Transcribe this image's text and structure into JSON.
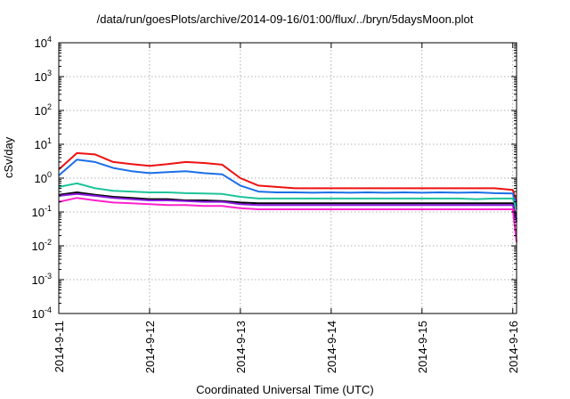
{
  "chart_data": {
    "type": "line",
    "title": "/data/run/goesPlots/archive/2014-09-16/01:00/flux/../bryn/5daysMoon.plot",
    "xlabel": "Coordinated Universal Time (UTC)",
    "ylabel": "cSv/day",
    "y_scale": "log",
    "ylim": [
      0.0001,
      10000
    ],
    "xlim": [
      "2014-09-11 00:00",
      "2014-09-16 01:00"
    ],
    "x_ticks": [
      "2014-9-11",
      "2014-9-12",
      "2014-9-13",
      "2014-9-14",
      "2014-9-15",
      "2014-9-16"
    ],
    "y_ticks": [
      {
        "base": "10",
        "exp": "4"
      },
      {
        "base": "10",
        "exp": "3"
      },
      {
        "base": "10",
        "exp": "2"
      },
      {
        "base": "10",
        "exp": "1"
      },
      {
        "base": "10",
        "exp": "0"
      },
      {
        "base": "10",
        "exp": "-1"
      },
      {
        "base": "10",
        "exp": "-2"
      },
      {
        "base": "10",
        "exp": "-3"
      },
      {
        "base": "10",
        "exp": "-4"
      }
    ],
    "grid": true,
    "legend": "none",
    "x": [
      "2014-09-11 00:00",
      "2014-09-11 04:48",
      "2014-09-11 09:36",
      "2014-09-11 14:24",
      "2014-09-11 19:12",
      "2014-09-12 00:00",
      "2014-09-12 04:48",
      "2014-09-12 09:36",
      "2014-09-12 14:24",
      "2014-09-12 19:12",
      "2014-09-13 00:00",
      "2014-09-13 04:48",
      "2014-09-13 09:36",
      "2014-09-13 14:24",
      "2014-09-13 19:12",
      "2014-09-14 00:00",
      "2014-09-14 04:48",
      "2014-09-14 09:36",
      "2014-09-14 14:24",
      "2014-09-14 19:12",
      "2014-09-15 00:00",
      "2014-09-15 04:48",
      "2014-09-15 09:36",
      "2014-09-15 14:24",
      "2014-09-15 19:12",
      "2014-09-16 00:00",
      "2014-09-16 01:00"
    ],
    "series": [
      {
        "color": "#ee1111",
        "values": [
          1.8,
          5.5,
          5.0,
          3.0,
          2.6,
          2.3,
          2.6,
          3.0,
          2.8,
          2.5,
          1.0,
          0.6,
          0.55,
          0.5,
          0.5,
          0.5,
          0.5,
          0.5,
          0.5,
          0.5,
          0.5,
          0.5,
          0.5,
          0.5,
          0.5,
          0.45,
          0.2
        ]
      },
      {
        "color": "#1a6fe8",
        "values": [
          1.2,
          3.5,
          3.0,
          2.0,
          1.6,
          1.4,
          1.5,
          1.6,
          1.4,
          1.3,
          0.6,
          0.4,
          0.38,
          0.38,
          0.37,
          0.38,
          0.37,
          0.38,
          0.37,
          0.38,
          0.37,
          0.38,
          0.37,
          0.38,
          0.36,
          0.35,
          0.15
        ]
      },
      {
        "color": "#1dc49a",
        "values": [
          0.55,
          0.7,
          0.5,
          0.42,
          0.4,
          0.38,
          0.38,
          0.36,
          0.35,
          0.34,
          0.28,
          0.25,
          0.25,
          0.25,
          0.25,
          0.25,
          0.25,
          0.25,
          0.25,
          0.25,
          0.25,
          0.25,
          0.25,
          0.24,
          0.25,
          0.25,
          0.12
        ]
      },
      {
        "color": "#000000",
        "values": [
          0.32,
          0.38,
          0.32,
          0.28,
          0.26,
          0.24,
          0.24,
          0.22,
          0.22,
          0.21,
          0.19,
          0.18,
          0.18,
          0.18,
          0.18,
          0.18,
          0.18,
          0.18,
          0.18,
          0.18,
          0.18,
          0.18,
          0.18,
          0.18,
          0.18,
          0.18,
          0.06
        ]
      },
      {
        "color": "#8a1be0",
        "values": [
          0.3,
          0.34,
          0.3,
          0.26,
          0.24,
          0.22,
          0.22,
          0.21,
          0.2,
          0.2,
          0.17,
          0.16,
          0.16,
          0.16,
          0.16,
          0.16,
          0.16,
          0.16,
          0.16,
          0.16,
          0.16,
          0.16,
          0.16,
          0.16,
          0.16,
          0.16,
          0.05
        ]
      },
      {
        "color": "#ff22cc",
        "values": [
          0.2,
          0.26,
          0.22,
          0.19,
          0.18,
          0.17,
          0.16,
          0.16,
          0.15,
          0.15,
          0.13,
          0.12,
          0.12,
          0.12,
          0.12,
          0.12,
          0.12,
          0.12,
          0.12,
          0.12,
          0.12,
          0.12,
          0.12,
          0.12,
          0.12,
          0.12,
          0.013
        ]
      }
    ]
  }
}
